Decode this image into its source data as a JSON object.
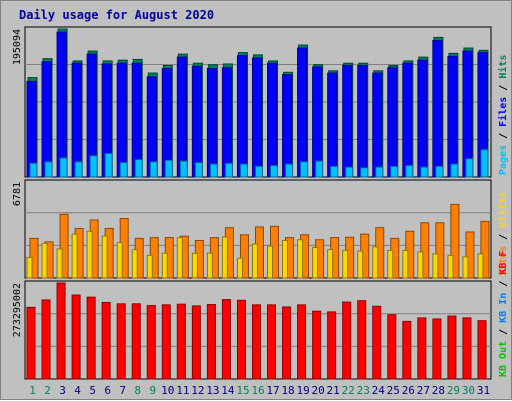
{
  "chart_data": {
    "type": "bar",
    "title": "Daily usage for August 2020",
    "days": [
      "1",
      "2",
      "3",
      "4",
      "5",
      "6",
      "7",
      "8",
      "9",
      "10",
      "11",
      "12",
      "13",
      "14",
      "15",
      "16",
      "17",
      "18",
      "19",
      "20",
      "21",
      "22",
      "23",
      "24",
      "25",
      "26",
      "27",
      "28",
      "29",
      "30",
      "31"
    ],
    "weekend_days": [
      "1",
      "2",
      "8",
      "9",
      "15",
      "16",
      "22",
      "23",
      "29",
      "30"
    ],
    "panels": [
      {
        "id": "hits-panel",
        "max_label": "195094",
        "ymax": 195094,
        "legend": [
          {
            "label": "Hits",
            "color": "#00805c"
          },
          {
            "label": "Files",
            "color": "#0000ff"
          },
          {
            "label": "Pages",
            "color": "#00c0ff"
          }
        ],
        "series": [
          {
            "name": "Hits",
            "color": "#00805c",
            "values": [
              131000,
              156000,
              195094,
              153000,
              166000,
              153000,
              154000,
              155000,
              137000,
              147000,
              162000,
              150000,
              148000,
              149000,
              164000,
              161000,
              153000,
              138000,
              174000,
              148000,
              140000,
              150000,
              150000,
              140000,
              147000,
              153000,
              158000,
              184000,
              163000,
              170000,
              167000
            ]
          },
          {
            "name": "Files",
            "color": "#0000ff",
            "values": [
              126000,
              152000,
              191000,
              150000,
              162000,
              149000,
              150000,
              150000,
              132000,
              143000,
              158000,
              146000,
              143000,
              144000,
              160000,
              157000,
              150000,
              135000,
              170000,
              145000,
              137000,
              147000,
              147000,
              137000,
              144000,
              150000,
              154000,
              180000,
              159000,
              166000,
              164000
            ]
          },
          {
            "name": "Pages",
            "color": "#00c0ff",
            "values": [
              18000,
              20000,
              25000,
              20000,
              28000,
              31000,
              19000,
              23000,
              20000,
              22000,
              21000,
              19000,
              17000,
              18000,
              17000,
              14000,
              15000,
              17000,
              20000,
              21000,
              14000,
              13000,
              12000,
              13000,
              14000,
              15000,
              13000,
              14000,
              17000,
              24000,
              36000
            ]
          }
        ]
      },
      {
        "id": "visits-panel",
        "max_label": "6781",
        "ymax": 6781,
        "legend": [
          {
            "label": "Visits",
            "color": "#ffd700"
          },
          {
            "label": "Sites",
            "color": "#ff8000"
          }
        ],
        "series": [
          {
            "name": "Sites",
            "color": "#ff8000",
            "values": [
              2800,
              2550,
              4500,
              3500,
              4100,
              3500,
              4200,
              2800,
              2850,
              2850,
              2950,
              2650,
              2850,
              3550,
              3050,
              3600,
              3650,
              2850,
              3050,
              2700,
              2850,
              2880,
              3100,
              3550,
              2800,
              3300,
              3900,
              3900,
              5200,
              3250,
              4000
            ]
          },
          {
            "name": "Visits",
            "color": "#ffd700",
            "values": [
              1450,
              2450,
              2050,
              3100,
              3300,
              2950,
              2500,
              2000,
              1600,
              1750,
              2850,
              1750,
              1750,
              2900,
              1400,
              2400,
              2250,
              2650,
              2700,
              2150,
              2000,
              1950,
              1900,
              2200,
              1950,
              1950,
              1850,
              1700,
              1600,
              1500,
              1700
            ]
          }
        ]
      },
      {
        "id": "kbytes-panel",
        "max_label": "273295002",
        "ymax": 273295002,
        "legend": [
          {
            "label": "KB F",
            "color": "#ff0000"
          },
          {
            "label": "KB In",
            "color": "#0080ff"
          },
          {
            "label": "KB Out",
            "color": "#00c000"
          }
        ],
        "series": [
          {
            "name": "KB F",
            "color": "#ff0000",
            "values": [
              204000000,
              225000000,
              273295000,
              239000000,
              233000000,
              218000000,
              214000000,
              214000000,
              209000000,
              211000000,
              213000000,
              208000000,
              212000000,
              226000000,
              224000000,
              211000000,
              211000000,
              205000000,
              211000000,
              193000000,
              191000000,
              219000000,
              223000000,
              207000000,
              183000000,
              164000000,
              174000000,
              171000000,
              179000000,
              174000000,
              166000000
            ]
          }
        ]
      }
    ]
  }
}
